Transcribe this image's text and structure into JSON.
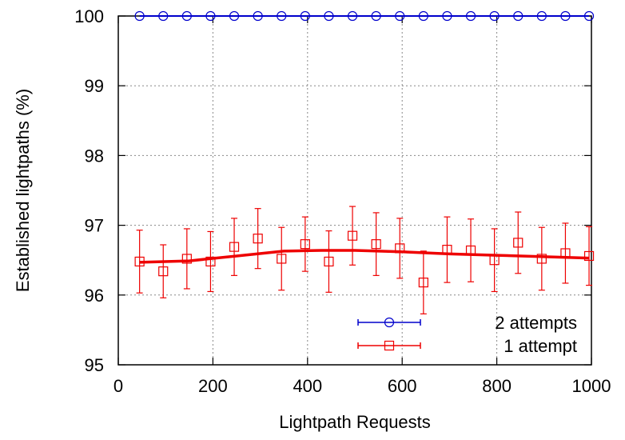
{
  "chart_data": {
    "type": "line",
    "title": "",
    "xlabel": "Lightpath Requests",
    "ylabel": "Established lightpaths (%)",
    "xlim": [
      0,
      1000
    ],
    "ylim": [
      95,
      100
    ],
    "xticks": [
      0,
      200,
      400,
      600,
      800,
      1000
    ],
    "yticks": [
      95,
      96,
      97,
      98,
      99,
      100
    ],
    "grid": true,
    "legend_position": "bottom-right",
    "x": [
      45,
      95,
      145,
      195,
      245,
      295,
      345,
      395,
      445,
      495,
      545,
      595,
      645,
      695,
      745,
      795,
      845,
      895,
      945,
      995
    ],
    "series": [
      {
        "name": "2 attempts",
        "color": "#0000cc",
        "marker": "circle",
        "values": [
          100,
          100,
          100,
          100,
          100,
          100,
          100,
          100,
          100,
          100,
          100,
          100,
          100,
          100,
          100,
          100,
          100,
          100,
          100,
          100
        ]
      },
      {
        "name": "1 attempt",
        "color": "#ee0000",
        "marker": "square",
        "values": [
          96.48,
          96.34,
          96.52,
          96.48,
          96.69,
          96.81,
          96.52,
          96.73,
          96.48,
          96.85,
          96.73,
          96.67,
          96.18,
          96.65,
          96.64,
          96.5,
          96.75,
          96.52,
          96.6,
          96.56
        ],
        "errors": [
          0.45,
          0.38,
          0.43,
          0.43,
          0.41,
          0.43,
          0.45,
          0.39,
          0.44,
          0.42,
          0.45,
          0.43,
          0.45,
          0.47,
          0.45,
          0.45,
          0.44,
          0.45,
          0.43,
          0.42
        ]
      }
    ],
    "fit_curve": {
      "series": "1 attempt",
      "x": [
        45,
        150,
        250,
        350,
        430,
        500,
        600,
        700,
        800,
        900,
        995
      ],
      "values": [
        96.47,
        96.49,
        96.56,
        96.63,
        96.64,
        96.64,
        96.62,
        96.59,
        96.57,
        96.55,
        96.53
      ]
    }
  }
}
